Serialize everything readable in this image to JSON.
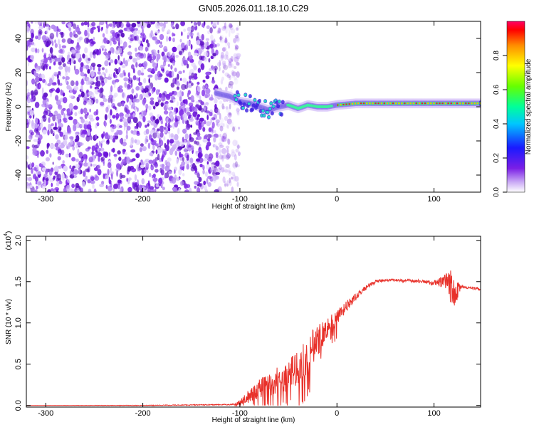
{
  "title": "GN05.2026.011.18.10.C29",
  "chart_data": [
    {
      "type": "heatmap",
      "name": "spectrogram",
      "xlabel": "Height of straight line (km)",
      "ylabel": "Frequency (Hz)",
      "xlim": [
        -320,
        148
      ],
      "ylim": [
        -50,
        50
      ],
      "xticks": [
        -300,
        -200,
        -100,
        0,
        100
      ],
      "xtick_labels": [
        "-300",
        "-200",
        "-100",
        "0",
        "100"
      ],
      "yticks": [
        -40,
        -20,
        0,
        20,
        40
      ],
      "ytick_labels": [
        "-40",
        "-20",
        "0",
        "20",
        "40"
      ],
      "noise_region_x": [
        -320,
        -108
      ],
      "signal_track": {
        "x": [
          -125,
          -110,
          -100,
          -90,
          -80,
          -70,
          -60,
          -50,
          -40,
          -30,
          -20,
          -10,
          0,
          20,
          40,
          60,
          80,
          100,
          120,
          148
        ],
        "freq_hz": [
          8,
          6,
          3,
          2,
          0,
          -2,
          0,
          1,
          -1,
          1,
          0,
          0,
          1,
          2,
          2,
          2,
          2,
          2,
          2,
          2
        ]
      },
      "colorbar": {
        "label": "Normalized spectral amplitude",
        "range": [
          0,
          1
        ],
        "ticks": [
          0.0,
          0.2,
          0.4,
          0.6,
          0.8
        ],
        "tick_labels": [
          "0.0",
          "0.2",
          "0.4",
          "0.6",
          "0.8"
        ]
      }
    },
    {
      "type": "line",
      "name": "snr",
      "xlabel": "Height of straight line (km)",
      "ylabel": "SNR (10 * v/v)",
      "multiplier_label": "(x10",
      "multiplier_exp": "4",
      "xlim": [
        -320,
        148
      ],
      "ylim": [
        -0.02,
        2.05
      ],
      "xticks": [
        -300,
        -200,
        -100,
        0,
        100
      ],
      "xtick_labels": [
        "-300",
        "-200",
        "-100",
        "0",
        "100"
      ],
      "yticks": [
        0.0,
        0.5,
        1.0,
        1.5,
        2.0
      ],
      "ytick_labels": [
        "0.0",
        "0.5",
        "1.0",
        "1.5",
        "2.0"
      ],
      "series": [
        {
          "name": "SNR",
          "color": "#e8312a",
          "x": [
            -320,
            -200,
            -110,
            -100,
            -90,
            -80,
            -70,
            -60,
            -50,
            -40,
            -30,
            -20,
            -10,
            0,
            10,
            20,
            30,
            40,
            50,
            60,
            70,
            80,
            90,
            100,
            110,
            115,
            120,
            125,
            130,
            140,
            148
          ],
          "y": [
            0.0,
            0.0,
            0.01,
            0.04,
            0.12,
            0.2,
            0.26,
            0.3,
            0.38,
            0.45,
            0.6,
            0.8,
            0.95,
            1.05,
            1.2,
            1.32,
            1.43,
            1.5,
            1.52,
            1.52,
            1.51,
            1.51,
            1.5,
            1.48,
            1.5,
            1.45,
            1.42,
            1.44,
            1.43,
            1.42,
            1.41
          ],
          "noise": [
            0.0,
            0.004,
            0.006,
            0.03,
            0.08,
            0.12,
            0.14,
            0.18,
            0.2,
            0.22,
            0.25,
            0.2,
            0.14,
            0.1,
            0.07,
            0.04,
            0.03,
            0.02,
            0.015,
            0.015,
            0.02,
            0.02,
            0.02,
            0.03,
            0.08,
            0.18,
            0.3,
            0.12,
            0.02,
            0.015,
            0.015
          ]
        }
      ]
    }
  ]
}
